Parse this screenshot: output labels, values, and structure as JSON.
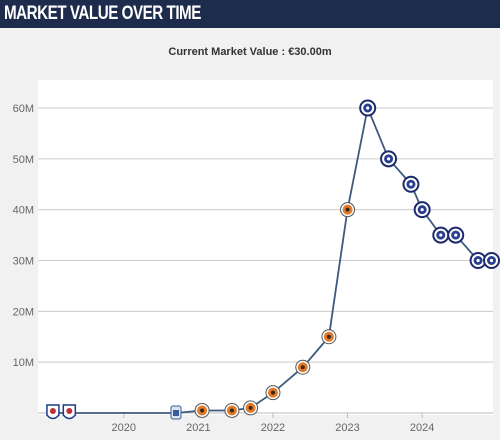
{
  "header": {
    "title": "MARKET VALUE OVER TIME"
  },
  "chart_data": {
    "type": "line",
    "subtitle": "Current Market Value : €30.00m",
    "xlabel": "",
    "ylabel": "",
    "ylim": [
      0,
      60
    ],
    "y_ticks": [
      {
        "value": 10,
        "label": "10M"
      },
      {
        "value": 20,
        "label": "20M"
      },
      {
        "value": 30,
        "label": "30M"
      },
      {
        "value": 40,
        "label": "40M"
      },
      {
        "value": 50,
        "label": "50M"
      },
      {
        "value": 60,
        "label": "60M"
      }
    ],
    "x_ticks": [
      {
        "value": 2020.0,
        "label": "2020"
      },
      {
        "value": 2021.0,
        "label": "2021"
      },
      {
        "value": 2022.0,
        "label": "2022"
      },
      {
        "value": 2023.0,
        "label": "2023"
      },
      {
        "value": 2024.0,
        "label": "2024"
      }
    ],
    "xlim": [
      2018.85,
      2024.95
    ],
    "grid": true,
    "line_color": "#3f5a7f",
    "club_colors": {
      "club-a": "#e8e8f0",
      "club-b": "#dde4f0",
      "club-c": "#e07a2a",
      "club-d": "#2a3f8f"
    },
    "series": [
      {
        "values": [
          {
            "x": 2019.05,
            "y": 0.0,
            "club": "club-a"
          },
          {
            "x": 2019.27,
            "y": 0.0,
            "club": "club-a"
          },
          {
            "x": 2020.7,
            "y": 0.0,
            "club": "club-b"
          },
          {
            "x": 2021.05,
            "y": 0.5,
            "club": "club-c"
          },
          {
            "x": 2021.45,
            "y": 0.5,
            "club": "club-c"
          },
          {
            "x": 2021.7,
            "y": 1.0,
            "club": "club-c"
          },
          {
            "x": 2022.0,
            "y": 4.0,
            "club": "club-c"
          },
          {
            "x": 2022.4,
            "y": 9.0,
            "club": "club-c"
          },
          {
            "x": 2022.75,
            "y": 15.0,
            "club": "club-c"
          },
          {
            "x": 2023.0,
            "y": 40.0,
            "club": "club-c"
          },
          {
            "x": 2023.27,
            "y": 60.0,
            "club": "club-d"
          },
          {
            "x": 2023.55,
            "y": 50.0,
            "club": "club-d"
          },
          {
            "x": 2023.85,
            "y": 45.0,
            "club": "club-d"
          },
          {
            "x": 2024.0,
            "y": 40.0,
            "club": "club-d"
          },
          {
            "x": 2024.25,
            "y": 35.0,
            "club": "club-d"
          },
          {
            "x": 2024.45,
            "y": 35.0,
            "club": "club-d"
          },
          {
            "x": 2024.75,
            "y": 30.0,
            "club": "club-d"
          },
          {
            "x": 2024.93,
            "y": 30.0,
            "club": "club-d"
          }
        ]
      }
    ]
  }
}
